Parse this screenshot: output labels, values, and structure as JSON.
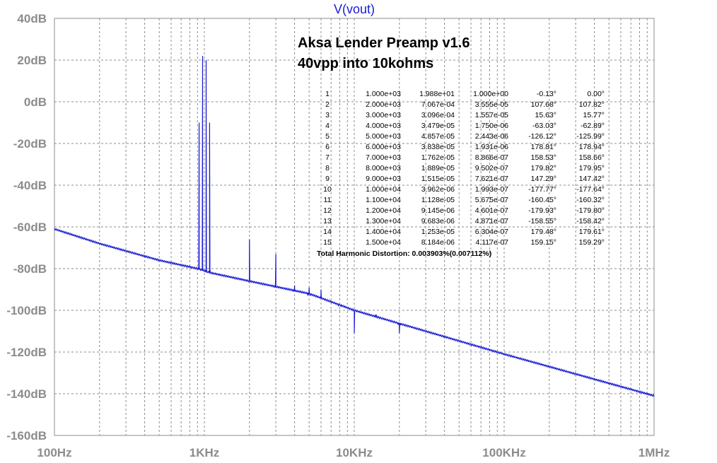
{
  "chart_data": {
    "type": "line",
    "title": "V(vout)",
    "x_scale": "log",
    "xlim": [
      100,
      1000000
    ],
    "ylim": [
      -160,
      40
    ],
    "x_tick_values": [
      100,
      1000,
      10000,
      100000,
      1000000
    ],
    "x_tick_labels": [
      "100Hz",
      "1KHz",
      "10KHz",
      "100KHz",
      "1MHz"
    ],
    "y_tick_values": [
      40,
      20,
      0,
      -20,
      -40,
      -60,
      -80,
      -100,
      -120,
      -140,
      -160
    ],
    "y_tick_labels": [
      "40dB",
      "20dB",
      "0dB",
      "-20dB",
      "-40dB",
      "-60dB",
      "-80dB",
      "-100dB",
      "-120dB",
      "-140dB",
      "-160dB"
    ],
    "grid": true,
    "trace_color": "#1a1ad6",
    "noise_floor": {
      "x": [
        100,
        200,
        500,
        900,
        1100,
        2000,
        5000,
        10000,
        100000,
        1000000
      ],
      "y": [
        -61,
        -68,
        -76,
        -80,
        -82,
        -86,
        -92,
        -100,
        -121,
        -141
      ]
    },
    "peaks": [
      {
        "x": 1000,
        "y": 22,
        "base": -80
      },
      {
        "x": 2000,
        "y": -66,
        "base": -86
      },
      {
        "x": 3000,
        "y": -73,
        "base": -89
      },
      {
        "x": 4000,
        "y": -88,
        "base": -91
      },
      {
        "x": 5000,
        "y": -89,
        "base": -93
      },
      {
        "x": 6000,
        "y": -90,
        "base": -94
      },
      {
        "x": 8000,
        "y": -97,
        "base": -98
      },
      {
        "x": 10000,
        "y": -111,
        "base": -100
      },
      {
        "x": 14000,
        "y": -102,
        "base": -103
      },
      {
        "x": 20000,
        "y": -111,
        "base": -107
      }
    ],
    "annotations": [
      "Aksa Lender Preamp v1.6",
      "40vpp into 10kohms"
    ],
    "harmonics_table": {
      "rows": [
        [
          "1",
          "1.000e+03",
          "1.988e+01",
          "1.000e+00",
          "-0.13°",
          "0.00°"
        ],
        [
          "2",
          "2.000e+03",
          "7.067e-04",
          "3.555e-05",
          "107.68°",
          "107.82°"
        ],
        [
          "3",
          "3.000e+03",
          "3.096e-04",
          "1.557e-05",
          "15.63°",
          "15.77°"
        ],
        [
          "4",
          "4.000e+03",
          "3.479e-05",
          "1.750e-06",
          "-63.03°",
          "-62.89°"
        ],
        [
          "5",
          "5.000e+03",
          "4.857e-05",
          "2.443e-06",
          "-126.12°",
          "-125.99°"
        ],
        [
          "6",
          "6.000e+03",
          "3.838e-05",
          "1.931e-06",
          "178.81°",
          "178.94°"
        ],
        [
          "7",
          "7.000e+03",
          "1.762e-05",
          "8.866e-07",
          "158.53°",
          "158.66°"
        ],
        [
          "8",
          "8.000e+03",
          "1.889e-05",
          "9.502e-07",
          "179.82°",
          "179.95°"
        ],
        [
          "9",
          "9.000e+03",
          "1.515e-05",
          "7.621e-07",
          "147.29°",
          "147.42°"
        ],
        [
          "10",
          "1.000e+04",
          "3.962e-06",
          "1.993e-07",
          "-177.77°",
          "-177.64°"
        ],
        [
          "11",
          "1.100e+04",
          "1.128e-05",
          "5.675e-07",
          "-160.45°",
          "-160.32°"
        ],
        [
          "12",
          "1.200e+04",
          "9.145e-06",
          "4.601e-07",
          "-179.93°",
          "-179.80°"
        ],
        [
          "13",
          "1.300e+04",
          "9.683e-06",
          "4.871e-07",
          "-158.55°",
          "-158.42°"
        ],
        [
          "14",
          "1.400e+04",
          "1.253e-05",
          "6.304e-07",
          "179.48°",
          "179.61°"
        ],
        [
          "15",
          "1.500e+04",
          "8.184e-06",
          "4.117e-07",
          "159.15°",
          "159.29°"
        ]
      ],
      "thd": "Total Harmonic Distortion: 0.003903%(0.007112%)"
    }
  }
}
